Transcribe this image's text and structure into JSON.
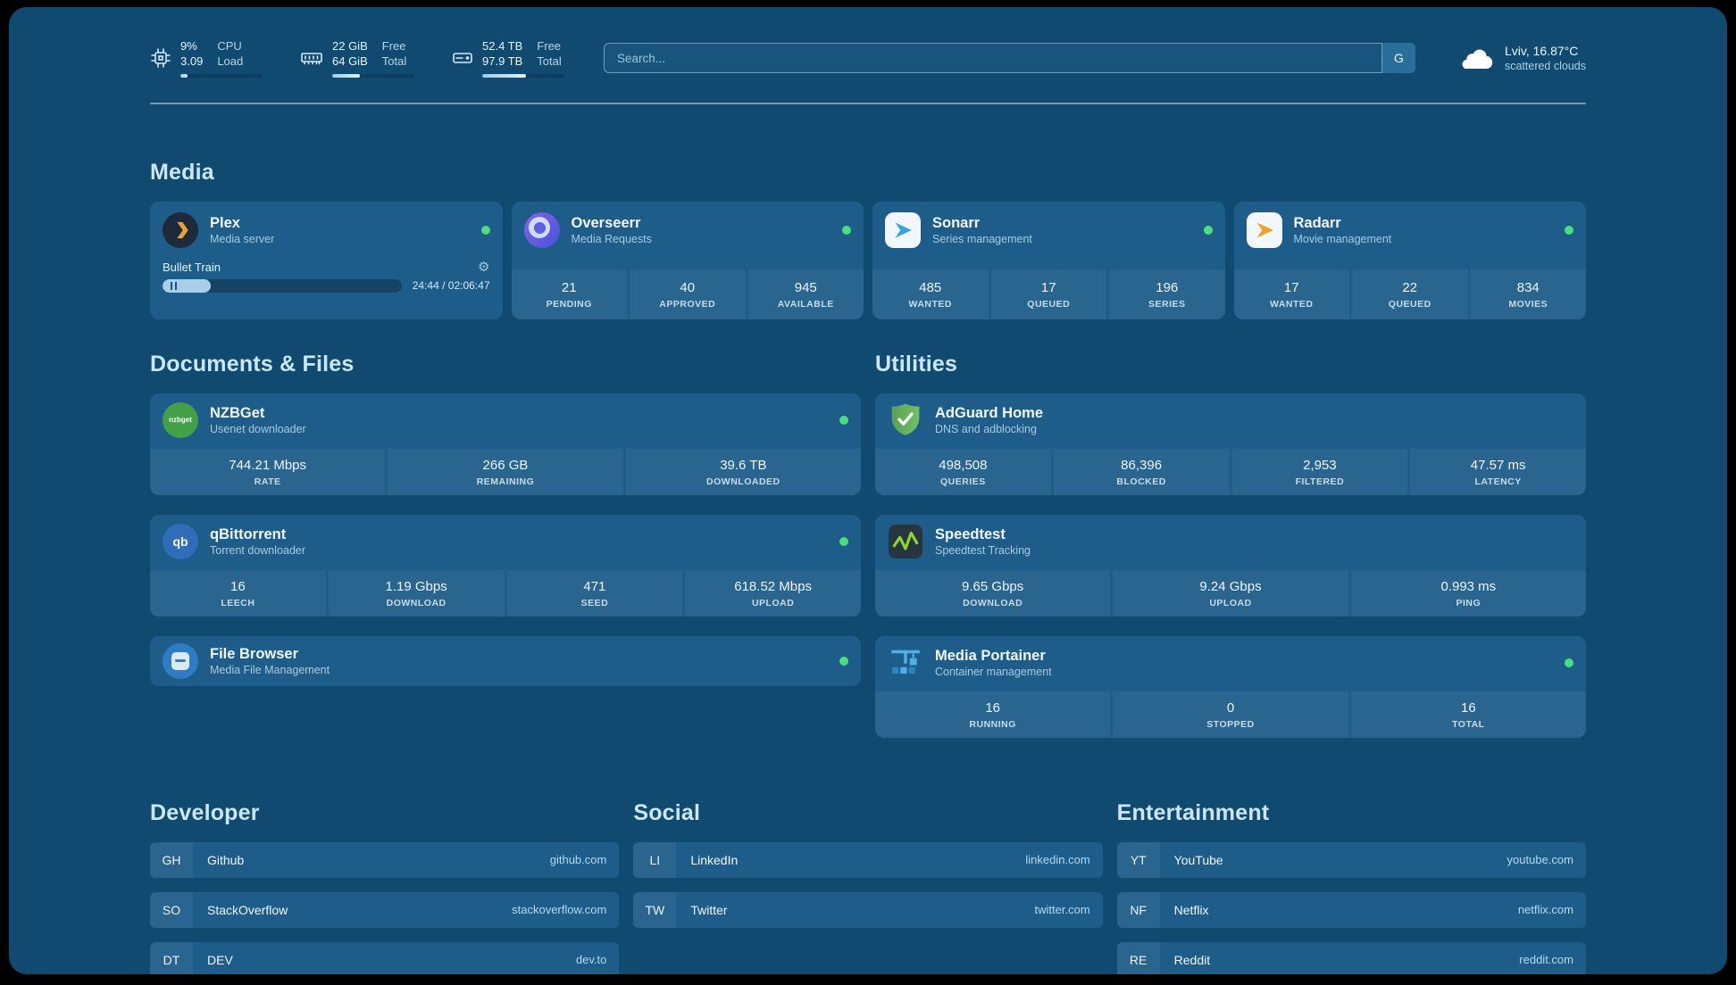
{
  "topbar": {
    "resources": [
      {
        "icon": "cpu-icon",
        "value": "9%",
        "sub": "3.09",
        "label_top": "CPU",
        "label_bottom": "Load",
        "progress": 9
      },
      {
        "icon": "memory-icon",
        "value": "22 GiB",
        "sub": "64 GiB",
        "label_top": "Free",
        "label_bottom": "Total",
        "progress": 34
      },
      {
        "icon": "disk-icon",
        "value": "52.4 TB",
        "sub": "97.9 TB",
        "label_top": "Free",
        "label_bottom": "Total",
        "progress": 53
      }
    ],
    "search": {
      "placeholder": "Search...",
      "provider_label": "G"
    },
    "weather": {
      "location": "Lviv, 16.87°C",
      "condition": "scattered clouds"
    }
  },
  "sections": {
    "media": {
      "title": "Media"
    },
    "documents": {
      "title": "Documents & Files"
    },
    "utilities": {
      "title": "Utilities"
    },
    "developer": {
      "title": "Developer"
    },
    "social": {
      "title": "Social"
    },
    "entertainment": {
      "title": "Entertainment"
    }
  },
  "services": {
    "plex": {
      "name": "Plex",
      "desc": "Media server",
      "status": "online",
      "now_playing": "Bullet Train",
      "time": "24:44 / 02:06:47",
      "progress_pct": 20
    },
    "overseerr": {
      "name": "Overseerr",
      "desc": "Media Requests",
      "status": "online",
      "stats": [
        {
          "value": "21",
          "label": "PENDING"
        },
        {
          "value": "40",
          "label": "APPROVED"
        },
        {
          "value": "945",
          "label": "AVAILABLE"
        }
      ]
    },
    "sonarr": {
      "name": "Sonarr",
      "desc": "Series management",
      "status": "online",
      "stats": [
        {
          "value": "485",
          "label": "WANTED"
        },
        {
          "value": "17",
          "label": "QUEUED"
        },
        {
          "value": "196",
          "label": "SERIES"
        }
      ]
    },
    "radarr": {
      "name": "Radarr",
      "desc": "Movie management",
      "status": "online",
      "stats": [
        {
          "value": "17",
          "label": "WANTED"
        },
        {
          "value": "22",
          "label": "QUEUED"
        },
        {
          "value": "834",
          "label": "MOVIES"
        }
      ]
    },
    "nzbget": {
      "name": "NZBGet",
      "desc": "Usenet downloader",
      "status": "online",
      "icon_label": "nzbget",
      "stats": [
        {
          "value": "744.21 Mbps",
          "label": "RATE"
        },
        {
          "value": "266 GB",
          "label": "REMAINING"
        },
        {
          "value": "39.6 TB",
          "label": "DOWNLOADED"
        }
      ]
    },
    "qbittorrent": {
      "name": "qBittorrent",
      "desc": "Torrent downloader",
      "status": "online",
      "icon_label": "qb",
      "stats": [
        {
          "value": "16",
          "label": "LEECH"
        },
        {
          "value": "1.19 Gbps",
          "label": "DOWNLOAD"
        },
        {
          "value": "471",
          "label": "SEED"
        },
        {
          "value": "618.52 Mbps",
          "label": "UPLOAD"
        }
      ]
    },
    "filebrowser": {
      "name": "File Browser",
      "desc": "Media File Management",
      "status": "online"
    },
    "adguard": {
      "name": "AdGuard Home",
      "desc": "DNS and adblocking",
      "stats": [
        {
          "value": "498,508",
          "label": "QUERIES"
        },
        {
          "value": "86,396",
          "label": "BLOCKED"
        },
        {
          "value": "2,953",
          "label": "FILTERED"
        },
        {
          "value": "47.57 ms",
          "label": "LATENCY"
        }
      ]
    },
    "speedtest": {
      "name": "Speedtest",
      "desc": "Speedtest Tracking",
      "stats": [
        {
          "value": "9.65 Gbps",
          "label": "DOWNLOAD"
        },
        {
          "value": "9.24 Gbps",
          "label": "UPLOAD"
        },
        {
          "value": "0.993 ms",
          "label": "PING"
        }
      ]
    },
    "portainer": {
      "name": "Media Portainer",
      "desc": "Container management",
      "status": "online",
      "stats": [
        {
          "value": "16",
          "label": "RUNNING"
        },
        {
          "value": "0",
          "label": "STOPPED"
        },
        {
          "value": "16",
          "label": "TOTAL"
        }
      ]
    }
  },
  "bookmarks": {
    "developer": [
      {
        "abbr": "GH",
        "name": "Github",
        "domain": "github.com"
      },
      {
        "abbr": "SO",
        "name": "StackOverflow",
        "domain": "stackoverflow.com"
      },
      {
        "abbr": "DT",
        "name": "DEV",
        "domain": "dev.to"
      }
    ],
    "social": [
      {
        "abbr": "LI",
        "name": "LinkedIn",
        "domain": "linkedin.com"
      },
      {
        "abbr": "TW",
        "name": "Twitter",
        "domain": "twitter.com"
      }
    ],
    "entertainment": [
      {
        "abbr": "YT",
        "name": "YouTube",
        "domain": "youtube.com"
      },
      {
        "abbr": "NF",
        "name": "Netflix",
        "domain": "netflix.com"
      },
      {
        "abbr": "RE",
        "name": "Reddit",
        "domain": "reddit.com"
      }
    ]
  },
  "colors": {
    "background": "#114a70",
    "card": "#1e5d89",
    "status_online": "#4ade80",
    "plex_orange": "#e8a33d",
    "overseerr_purple": "#6366f1",
    "sonarr_blue": "#35a3dc",
    "radarr_orange": "#f5a02c",
    "nzbget_green": "#44a048",
    "qbittorrent_blue": "#2f6db8",
    "filebrowser_blue": "#2e7cc3",
    "adguard_green": "#67b868",
    "speedtest_green": "#8bd433",
    "portainer_blue": "#4fb0e8"
  }
}
